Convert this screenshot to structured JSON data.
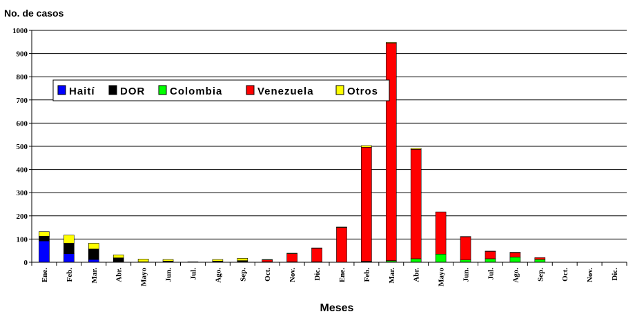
{
  "chart_data": {
    "type": "bar",
    "stacked": true,
    "ylabel": "No. de casos",
    "xlabel": "Meses",
    "ylim": [
      0,
      1000
    ],
    "yticks": [
      0,
      100,
      200,
      300,
      400,
      500,
      600,
      700,
      800,
      900,
      1000
    ],
    "grid": true,
    "legend_position": "top-left",
    "categories": [
      "Ene.",
      "Feb.",
      "Mar.",
      "Abr.",
      "Mayo",
      "Jun.",
      "Jul.",
      "Ago.",
      "Sep.",
      "Oct.",
      "Nov.",
      "Dic.",
      "Ene.",
      "Feb.",
      "Mar.",
      "Abr.",
      "Mayo",
      "Jun.",
      "Jul.",
      "Ago.",
      "Sep.",
      "Oct.",
      "Nov.",
      "Dic."
    ],
    "series": [
      {
        "name": "Haití",
        "color": "#0000ff",
        "values": [
          92,
          37,
          12,
          2,
          0,
          0,
          0,
          0,
          0,
          0,
          0,
          0,
          0,
          0,
          0,
          0,
          0,
          0,
          0,
          0,
          0,
          0,
          0,
          0
        ]
      },
      {
        "name": "DOR",
        "color": "#000000",
        "values": [
          20,
          45,
          45,
          17,
          2,
          5,
          2,
          5,
          5,
          2,
          2,
          2,
          0,
          2,
          2,
          0,
          0,
          0,
          0,
          0,
          0,
          0,
          0,
          0
        ]
      },
      {
        "name": "Colombia",
        "color": "#00ff00",
        "values": [
          0,
          0,
          0,
          0,
          0,
          0,
          0,
          0,
          0,
          0,
          0,
          0,
          0,
          2,
          5,
          15,
          35,
          10,
          15,
          22,
          12,
          0,
          0,
          0
        ]
      },
      {
        "name": "Venezuela",
        "color": "#ff0000",
        "values": [
          0,
          0,
          0,
          0,
          0,
          0,
          0,
          0,
          2,
          8,
          35,
          58,
          150,
          492,
          938,
          472,
          182,
          100,
          32,
          20,
          8,
          0,
          0,
          0
        ]
      },
      {
        "name": "Otros",
        "color": "#ffff00",
        "values": [
          20,
          35,
          25,
          13,
          12,
          7,
          0,
          7,
          10,
          2,
          2,
          2,
          2,
          7,
          3,
          4,
          0,
          1,
          1,
          1,
          0,
          0,
          0,
          0
        ]
      }
    ]
  }
}
